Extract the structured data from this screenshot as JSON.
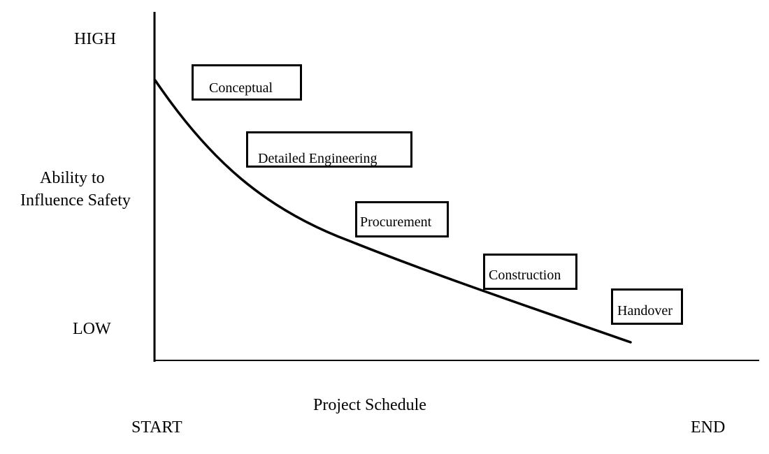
{
  "y_axis": {
    "high_label": "HIGH",
    "low_label": "LOW",
    "title_line1": "Ability to",
    "title_line2": "Influence Safety"
  },
  "x_axis": {
    "title": "Project Schedule",
    "start_label": "START",
    "end_label": "END"
  },
  "phases": [
    {
      "id": "conceptual",
      "label": "Conceptual"
    },
    {
      "id": "detailed-engineering",
      "label": "Detailed Engineering"
    },
    {
      "id": "procurement",
      "label": "Procurement"
    },
    {
      "id": "construction",
      "label": "Construction"
    },
    {
      "id": "handover",
      "label": "Handover"
    }
  ]
}
